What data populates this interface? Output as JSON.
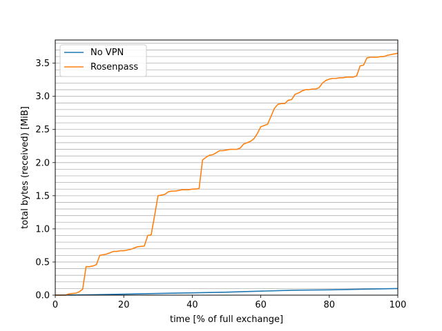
{
  "chart_data": {
    "type": "line",
    "xlabel": "time [% of full exchange]",
    "ylabel": "total bytes (received) [MiB]",
    "xlim": [
      0,
      100
    ],
    "ylim": [
      0,
      3.85
    ],
    "xticks": [
      0,
      20,
      40,
      60,
      80,
      100
    ],
    "xtick_labels": [
      "0",
      "20",
      "40",
      "60",
      "80",
      "100"
    ],
    "yticks": [
      0,
      0.5,
      1.0,
      1.5,
      2.0,
      2.5,
      3.0,
      3.5
    ],
    "ytick_labels": [
      "0.0",
      "0.5",
      "1.0",
      "1.5",
      "2.0",
      "2.5",
      "3.0",
      "3.5"
    ],
    "grid": "horizontal",
    "grid_step": 0.1,
    "legend_position": "top-left",
    "series": [
      {
        "name": "No VPN",
        "color": "#1f77b4",
        "x": [
          0,
          10,
          20,
          30,
          40,
          50,
          60,
          70,
          80,
          90,
          100
        ],
        "y": [
          0.0,
          0.005,
          0.015,
          0.025,
          0.035,
          0.045,
          0.06,
          0.075,
          0.08,
          0.09,
          0.1
        ]
      },
      {
        "name": "Rosenpass",
        "color": "#ff7f0e",
        "x": [
          0,
          3,
          4,
          6,
          7,
          8,
          9,
          10,
          11,
          12,
          13,
          14,
          15,
          16,
          17,
          18,
          19,
          20,
          21,
          22,
          23,
          24,
          26,
          27,
          28,
          29,
          30,
          31,
          32,
          33,
          34,
          35,
          36,
          37,
          38,
          39,
          40,
          41,
          42,
          43,
          44,
          45,
          46,
          47,
          48,
          49,
          50,
          51,
          52,
          53,
          54,
          55,
          56,
          57,
          58,
          59,
          60,
          61,
          62,
          63,
          64,
          65,
          66,
          67,
          68,
          69,
          70,
          71,
          72,
          73,
          74,
          75,
          76,
          77,
          78,
          79,
          80,
          81,
          82,
          83,
          84,
          85,
          86,
          87,
          88,
          89,
          90,
          91,
          92,
          93,
          94,
          95,
          96,
          97,
          98,
          99,
          100
        ],
        "y": [
          0.0,
          0.0,
          0.02,
          0.03,
          0.05,
          0.09,
          0.43,
          0.43,
          0.44,
          0.46,
          0.6,
          0.61,
          0.62,
          0.64,
          0.66,
          0.66,
          0.67,
          0.67,
          0.68,
          0.69,
          0.71,
          0.73,
          0.74,
          0.9,
          0.91,
          1.2,
          1.5,
          1.51,
          1.52,
          1.56,
          1.57,
          1.57,
          1.58,
          1.59,
          1.59,
          1.59,
          1.6,
          1.6,
          1.61,
          2.04,
          2.08,
          2.11,
          2.12,
          2.15,
          2.18,
          2.18,
          2.19,
          2.2,
          2.2,
          2.2,
          2.22,
          2.28,
          2.3,
          2.32,
          2.36,
          2.44,
          2.54,
          2.56,
          2.58,
          2.7,
          2.82,
          2.88,
          2.89,
          2.89,
          2.94,
          2.95,
          3.03,
          3.05,
          3.08,
          3.1,
          3.1,
          3.11,
          3.11,
          3.13,
          3.2,
          3.24,
          3.26,
          3.27,
          3.27,
          3.28,
          3.28,
          3.29,
          3.29,
          3.29,
          3.31,
          3.46,
          3.47,
          3.58,
          3.59,
          3.59,
          3.59,
          3.6,
          3.6,
          3.62,
          3.63,
          3.64,
          3.65
        ]
      }
    ]
  }
}
